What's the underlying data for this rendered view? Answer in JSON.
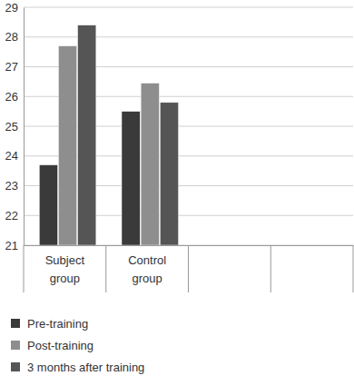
{
  "chart_data": {
    "type": "bar",
    "categories": [
      "Subject group",
      "Control group",
      null,
      null
    ],
    "series": [
      {
        "name": "Pre-training",
        "color": "#3a3a3a",
        "values": [
          23.7,
          25.5,
          null,
          null
        ]
      },
      {
        "name": "Post-training",
        "color": "#8e8e8e",
        "values": [
          27.7,
          26.45,
          null,
          null
        ]
      },
      {
        "name": "3 months after training",
        "color": "#555555",
        "values": [
          28.4,
          25.8,
          null,
          null
        ]
      }
    ],
    "ylim": [
      21,
      29
    ],
    "yticks": [
      21,
      22,
      23,
      24,
      25,
      26,
      27,
      28,
      29
    ],
    "grid": true,
    "legend": "bottom-left"
  }
}
